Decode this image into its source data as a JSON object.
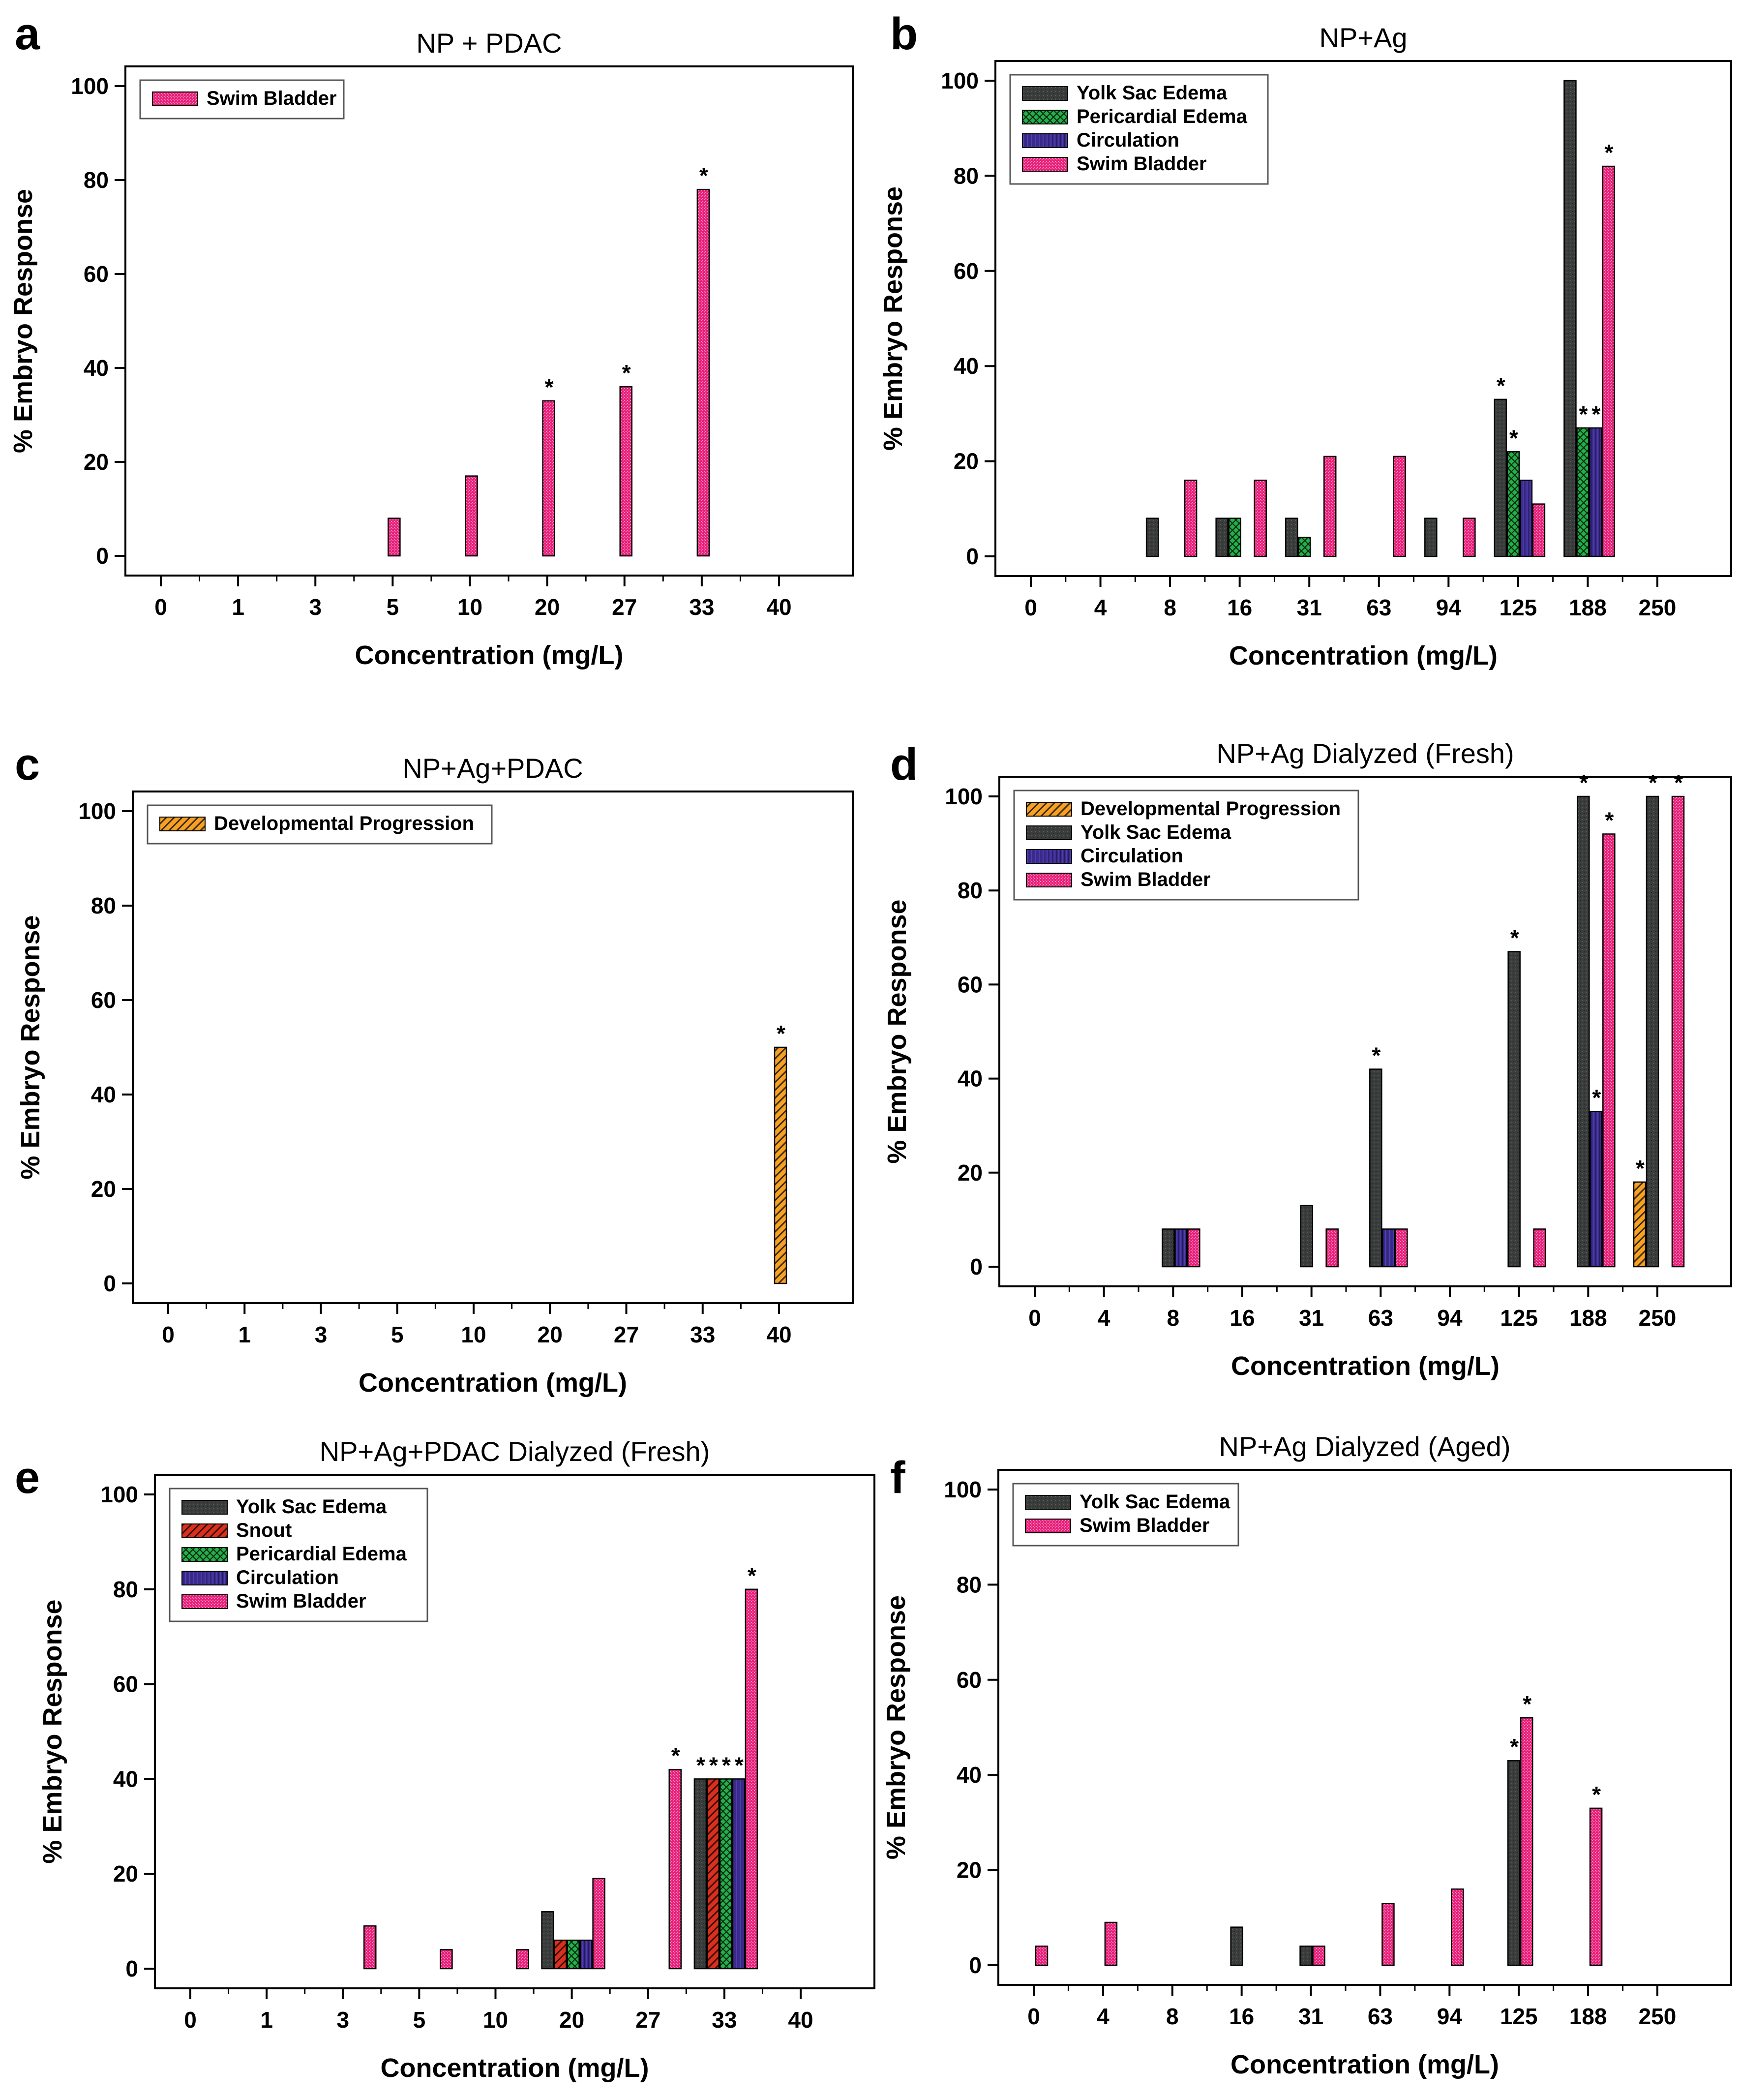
{
  "figure": {
    "ylabel": "% Embryo Response",
    "xlabel": "Concentration (mg/L)",
    "panel_letters": [
      "a",
      "b",
      "c",
      "d",
      "e",
      "f"
    ]
  },
  "colors": {
    "yolk_sac_edema": "#3a3d3c",
    "pericardial_edema": "#23b04a",
    "circulation": "#3a2a8a",
    "swim_bladder": "#e8207a",
    "developmental_progression": "#f7a124",
    "snout": "#d9301e",
    "axes": "#000000"
  },
  "chart_data": [
    {
      "letter": "a",
      "type": "bar",
      "title": "NP + PDAC",
      "xlabel": "Concentration (mg/L)",
      "ylabel": "% Embryo Response",
      "ylim": [
        0,
        100
      ],
      "legend_position": "top-left",
      "categories": [
        "0",
        "1",
        "3",
        "5",
        "10",
        "20",
        "27",
        "33",
        "40"
      ],
      "series": [
        {
          "name": "Swim Bladder",
          "key": "swim_bladder",
          "values": [
            0,
            0,
            0,
            8,
            17,
            33,
            36,
            78,
            0
          ]
        }
      ],
      "annotations": [
        {
          "series": 0,
          "category": 5,
          "text": "*"
        },
        {
          "series": 0,
          "category": 6,
          "text": "*"
        },
        {
          "series": 0,
          "category": 7,
          "text": "*"
        }
      ]
    },
    {
      "letter": "b",
      "type": "bar",
      "title": "NP+Ag",
      "xlabel": "Concentration (mg/L)",
      "ylabel": "% Embryo Response",
      "ylim": [
        0,
        100
      ],
      "legend_position": "top-left",
      "categories": [
        "0",
        "4",
        "8",
        "16",
        "31",
        "63",
        "94",
        "125",
        "188",
        "250"
      ],
      "series": [
        {
          "name": "Yolk Sac Edema",
          "key": "yolk_sac_edema",
          "values": [
            0,
            0,
            8,
            8,
            8,
            0,
            8,
            33,
            100,
            0
          ]
        },
        {
          "name": "Pericardial Edema",
          "key": "pericardial_edema",
          "values": [
            0,
            0,
            0,
            8,
            4,
            0,
            0,
            22,
            27,
            0
          ]
        },
        {
          "name": "Circulation",
          "key": "circulation",
          "values": [
            0,
            0,
            0,
            0,
            0,
            0,
            0,
            16,
            27,
            0
          ]
        },
        {
          "name": "Swim Bladder",
          "key": "swim_bladder",
          "values": [
            0,
            0,
            16,
            16,
            21,
            21,
            8,
            11,
            82,
            0
          ]
        }
      ],
      "annotations": [
        {
          "series": 0,
          "category": 7,
          "text": "*"
        },
        {
          "series": 1,
          "category": 7,
          "text": "*"
        },
        {
          "series": 1,
          "category": 8,
          "text": "*"
        },
        {
          "series": 2,
          "category": 8,
          "text": "*"
        },
        {
          "series": 3,
          "category": 8,
          "text": "*"
        }
      ]
    },
    {
      "letter": "c",
      "type": "bar",
      "title": "NP+Ag+PDAC",
      "xlabel": "Concentration (mg/L)",
      "ylabel": "% Embryo Response",
      "ylim": [
        0,
        100
      ],
      "legend_position": "top-left",
      "categories": [
        "0",
        "1",
        "3",
        "5",
        "10",
        "20",
        "27",
        "33",
        "40"
      ],
      "series": [
        {
          "name": "Developmental Progression",
          "key": "developmental_progression",
          "values": [
            0,
            0,
            0,
            0,
            0,
            0,
            0,
            0,
            50
          ]
        }
      ],
      "annotations": [
        {
          "series": 0,
          "category": 8,
          "text": "*"
        }
      ]
    },
    {
      "letter": "d",
      "type": "bar",
      "title": "NP+Ag Dialyzed (Fresh)",
      "xlabel": "Concentration (mg/L)",
      "ylabel": "% Embryo Response",
      "ylim": [
        0,
        100
      ],
      "legend_position": "top-left",
      "categories": [
        "0",
        "4",
        "8",
        "16",
        "31",
        "63",
        "94",
        "125",
        "188",
        "250"
      ],
      "series": [
        {
          "name": "Developmental Progression",
          "key": "developmental_progression",
          "values": [
            0,
            0,
            0,
            0,
            0,
            0,
            0,
            0,
            0,
            18
          ]
        },
        {
          "name": "Yolk Sac Edema",
          "key": "yolk_sac_edema",
          "values": [
            0,
            0,
            8,
            0,
            13,
            42,
            0,
            67,
            100,
            100
          ]
        },
        {
          "name": "Circulation",
          "key": "circulation",
          "values": [
            0,
            0,
            8,
            0,
            0,
            8,
            0,
            0,
            33,
            0
          ]
        },
        {
          "name": "Swim Bladder",
          "key": "swim_bladder",
          "values": [
            0,
            0,
            8,
            0,
            8,
            8,
            0,
            8,
            92,
            100
          ]
        }
      ],
      "annotations": [
        {
          "series": 1,
          "category": 5,
          "text": "*"
        },
        {
          "series": 1,
          "category": 7,
          "text": "*"
        },
        {
          "series": 1,
          "category": 8,
          "text": "*"
        },
        {
          "series": 2,
          "category": 8,
          "text": "*"
        },
        {
          "series": 3,
          "category": 8,
          "text": "*"
        },
        {
          "series": 0,
          "category": 9,
          "text": "*"
        },
        {
          "series": 1,
          "category": 9,
          "text": "*"
        },
        {
          "series": 3,
          "category": 9,
          "text": "*"
        }
      ]
    },
    {
      "letter": "e",
      "type": "bar",
      "title": "NP+Ag+PDAC Dialyzed (Fresh)",
      "xlabel": "Concentration (mg/L)",
      "ylabel": "% Embryo Response",
      "ylim": [
        0,
        100
      ],
      "legend_position": "top-left",
      "categories": [
        "0",
        "1",
        "3",
        "5",
        "10",
        "20",
        "27",
        "33",
        "40"
      ],
      "series": [
        {
          "name": "Yolk Sac Edema",
          "key": "yolk_sac_edema",
          "values": [
            0,
            0,
            0,
            0,
            0,
            12,
            0,
            40,
            0
          ]
        },
        {
          "name": "Snout",
          "key": "snout",
          "values": [
            0,
            0,
            0,
            0,
            0,
            6,
            0,
            40,
            0
          ]
        },
        {
          "name": "Pericardial Edema",
          "key": "pericardial_edema",
          "values": [
            0,
            0,
            0,
            0,
            0,
            6,
            0,
            40,
            0
          ]
        },
        {
          "name": "Circulation",
          "key": "circulation",
          "values": [
            0,
            0,
            0,
            0,
            0,
            6,
            0,
            40,
            0
          ]
        },
        {
          "name": "Swim Bladder",
          "key": "swim_bladder",
          "values": [
            0,
            0,
            9,
            4,
            4,
            19,
            42,
            80,
            0
          ]
        }
      ],
      "annotations": [
        {
          "series": 4,
          "category": 6,
          "text": "*"
        },
        {
          "series": 0,
          "category": 7,
          "text": "*"
        },
        {
          "series": 1,
          "category": 7,
          "text": "*"
        },
        {
          "series": 2,
          "category": 7,
          "text": "*"
        },
        {
          "series": 3,
          "category": 7,
          "text": "*"
        },
        {
          "series": 4,
          "category": 7,
          "text": "*"
        }
      ]
    },
    {
      "letter": "f",
      "type": "bar",
      "title": "NP+Ag Dialyzed (Aged)",
      "xlabel": "Concentration (mg/L)",
      "ylabel": "% Embryo Response",
      "ylim": [
        0,
        100
      ],
      "legend_position": "top-left",
      "categories": [
        "0",
        "4",
        "8",
        "16",
        "31",
        "63",
        "94",
        "125",
        "188",
        "250"
      ],
      "series": [
        {
          "name": "Yolk Sac Edema",
          "key": "yolk_sac_edema",
          "values": [
            0,
            0,
            0,
            8,
            4,
            0,
            0,
            43,
            0,
            0
          ]
        },
        {
          "name": "Swim Bladder",
          "key": "swim_bladder",
          "values": [
            4,
            9,
            0,
            0,
            4,
            13,
            16,
            52,
            33,
            0
          ]
        }
      ],
      "annotations": [
        {
          "series": 0,
          "category": 7,
          "text": "*"
        },
        {
          "series": 1,
          "category": 7,
          "text": "*"
        },
        {
          "series": 1,
          "category": 8,
          "text": "*"
        }
      ]
    }
  ]
}
